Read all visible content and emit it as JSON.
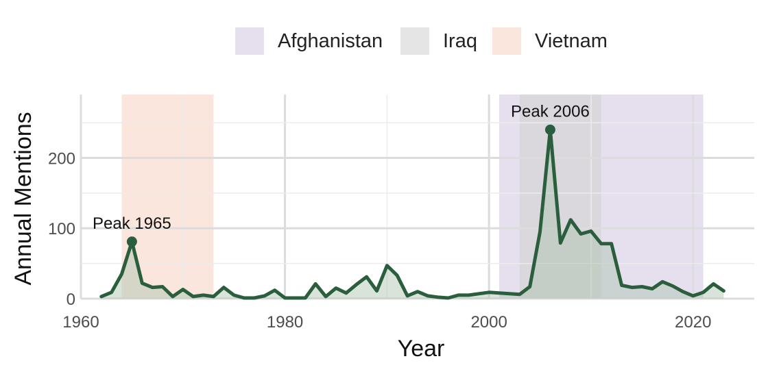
{
  "chart_data": {
    "type": "area",
    "xlabel": "Year",
    "ylabel": "Annual Mentions",
    "xlim": [
      1960,
      2026
    ],
    "ylim": [
      0,
      290
    ],
    "xticks": [
      1960,
      1980,
      2000,
      2020
    ],
    "yticks": [
      0,
      100,
      200
    ],
    "grid": true,
    "legend_position": "top",
    "legend": [
      {
        "label": "Afghanistan",
        "color": "#e6e0ee"
      },
      {
        "label": "Iraq",
        "color": "#e5e5e5"
      },
      {
        "label": "Vietnam",
        "color": "#fae6dc"
      }
    ],
    "periods": [
      {
        "name": "Vietnam",
        "start": 1964,
        "end": 1973,
        "color": "#fae6dc"
      },
      {
        "name": "Afghanistan",
        "start": 2001,
        "end": 2021,
        "color": "#e6e0ee"
      },
      {
        "name": "Iraq",
        "start": 2003,
        "end": 2011,
        "color": "#cfcfcf"
      }
    ],
    "series": [
      {
        "line_color": "#2a5e3c",
        "fill_color": "#a9c4ae",
        "x": [
          1962,
          1963,
          1964,
          1965,
          1966,
          1967,
          1968,
          1969,
          1970,
          1971,
          1972,
          1973,
          1974,
          1975,
          1976,
          1977,
          1978,
          1979,
          1980,
          1981,
          1982,
          1983,
          1984,
          1985,
          1986,
          1987,
          1988,
          1989,
          1990,
          1991,
          1992,
          1993,
          1994,
          1995,
          1996,
          1997,
          1998,
          1999,
          2000,
          2001,
          2002,
          2003,
          2004,
          2005,
          2006,
          2007,
          2008,
          2009,
          2010,
          2011,
          2012,
          2013,
          2014,
          2015,
          2016,
          2017,
          2018,
          2019,
          2020,
          2021,
          2022,
          2023
        ],
        "y": [
          3,
          9,
          35,
          81,
          22,
          16,
          17,
          3,
          13,
          3,
          5,
          3,
          16,
          5,
          1,
          1,
          4,
          12,
          1,
          1,
          1,
          21,
          3,
          15,
          8,
          20,
          31,
          11,
          47,
          33,
          4,
          10,
          4,
          2,
          1,
          5,
          5,
          7,
          9,
          8,
          7,
          6,
          17,
          95,
          240,
          79,
          112,
          92,
          96,
          78,
          78,
          19,
          16,
          17,
          14,
          24,
          18,
          10,
          4,
          9,
          21,
          11
        ]
      }
    ],
    "annotations": [
      {
        "text": "Peak 1965",
        "x": 1965,
        "y": 81
      },
      {
        "text": "Peak 2006",
        "x": 2006,
        "y": 240
      }
    ]
  }
}
